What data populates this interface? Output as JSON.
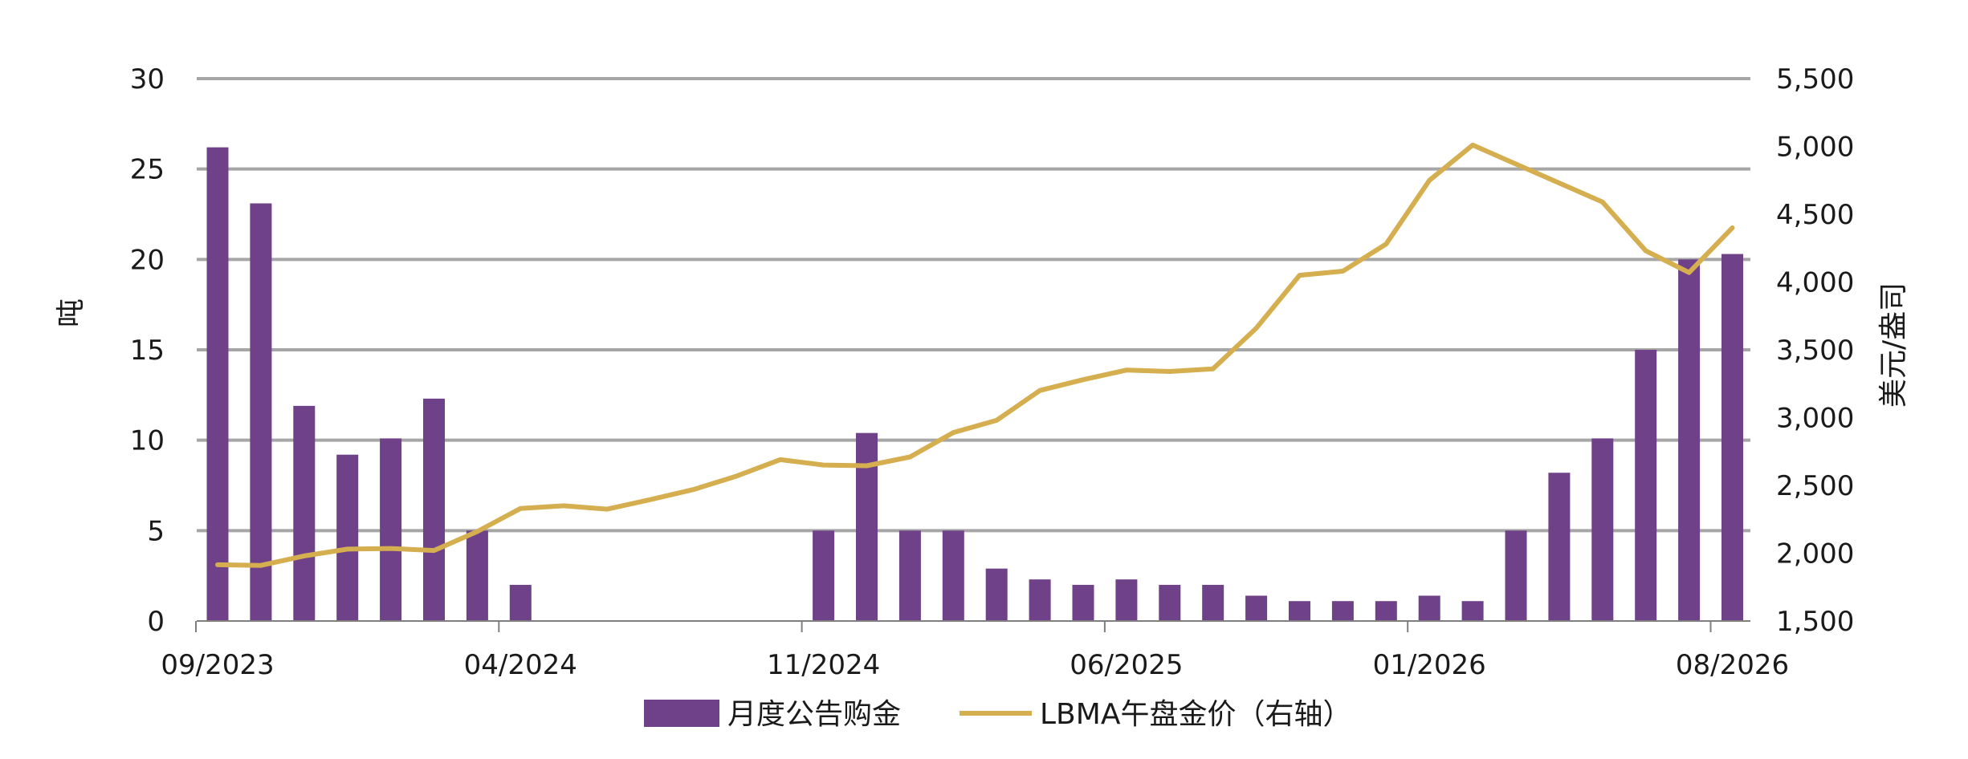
{
  "chart_data": {
    "type": "bar+line",
    "title": "",
    "x_tick_labels": [
      "09/2023",
      "04/2024",
      "11/2024",
      "06/2025",
      "01/2026",
      "08/2026"
    ],
    "ylabel_left": "吨",
    "ylabel_right": "美元/盎司",
    "ylim_left": [
      0,
      30
    ],
    "ylim_right": [
      1500,
      5500
    ],
    "left_ticks": [
      "0",
      "5",
      "10",
      "15",
      "20",
      "25",
      "30"
    ],
    "right_ticks": [
      "1,500",
      "2,000",
      "2,500",
      "3,000",
      "3,500",
      "4,000",
      "4,500",
      "5,000",
      "5,500"
    ],
    "grid": true,
    "legend_position": "bottom",
    "colors": {
      "bar": "#6e4189",
      "line": "#d4ae4f",
      "grid": "#a6a6a6"
    },
    "x": [
      "09/2023",
      "10/2023",
      "11/2023",
      "12/2023",
      "01/2024",
      "02/2024",
      "03/2024",
      "04/2024",
      "05/2024",
      "06/2024",
      "07/2024",
      "08/2024",
      "09/2024",
      "10/2024",
      "11/2024",
      "12/2024",
      "01/2025",
      "02/2025",
      "03/2025",
      "04/2025",
      "05/2025",
      "06/2025",
      "07/2025",
      "08/2025",
      "09/2025",
      "10/2025",
      "11/2025",
      "12/2025",
      "01/2026",
      "02/2026",
      "03/2026",
      "04/2026",
      "05/2026",
      "06/2026",
      "07/2026",
      "08/2026"
    ],
    "series": [
      {
        "name": "月度公告购金",
        "type": "bar",
        "axis": "left",
        "values": [
          26.2,
          23.1,
          11.9,
          9.2,
          10.1,
          12.3,
          5.0,
          2.0,
          0,
          0,
          0,
          0,
          0,
          0,
          5.0,
          10.4,
          5.0,
          5.0,
          2.9,
          2.3,
          2.0,
          2.3,
          2.0,
          2.0,
          1.4,
          1.1,
          1.1,
          1.1,
          1.4,
          1.1,
          5.0,
          8.2,
          10.1,
          15.0,
          20.0,
          20.3
        ]
      },
      {
        "name": "LBMA午盘金价（右轴）",
        "type": "line",
        "axis": "right",
        "values": [
          1915,
          1910,
          1980,
          2030,
          2035,
          2020,
          2160,
          2330,
          2350,
          2325,
          2395,
          2470,
          2570,
          2690,
          2650,
          2645,
          2710,
          2890,
          2980,
          3200,
          3280,
          3350,
          3340,
          3360,
          3660,
          4050,
          4080,
          4280,
          4750,
          5010,
          4870,
          4730,
          4590,
          4230,
          4070,
          4400
        ]
      }
    ]
  }
}
